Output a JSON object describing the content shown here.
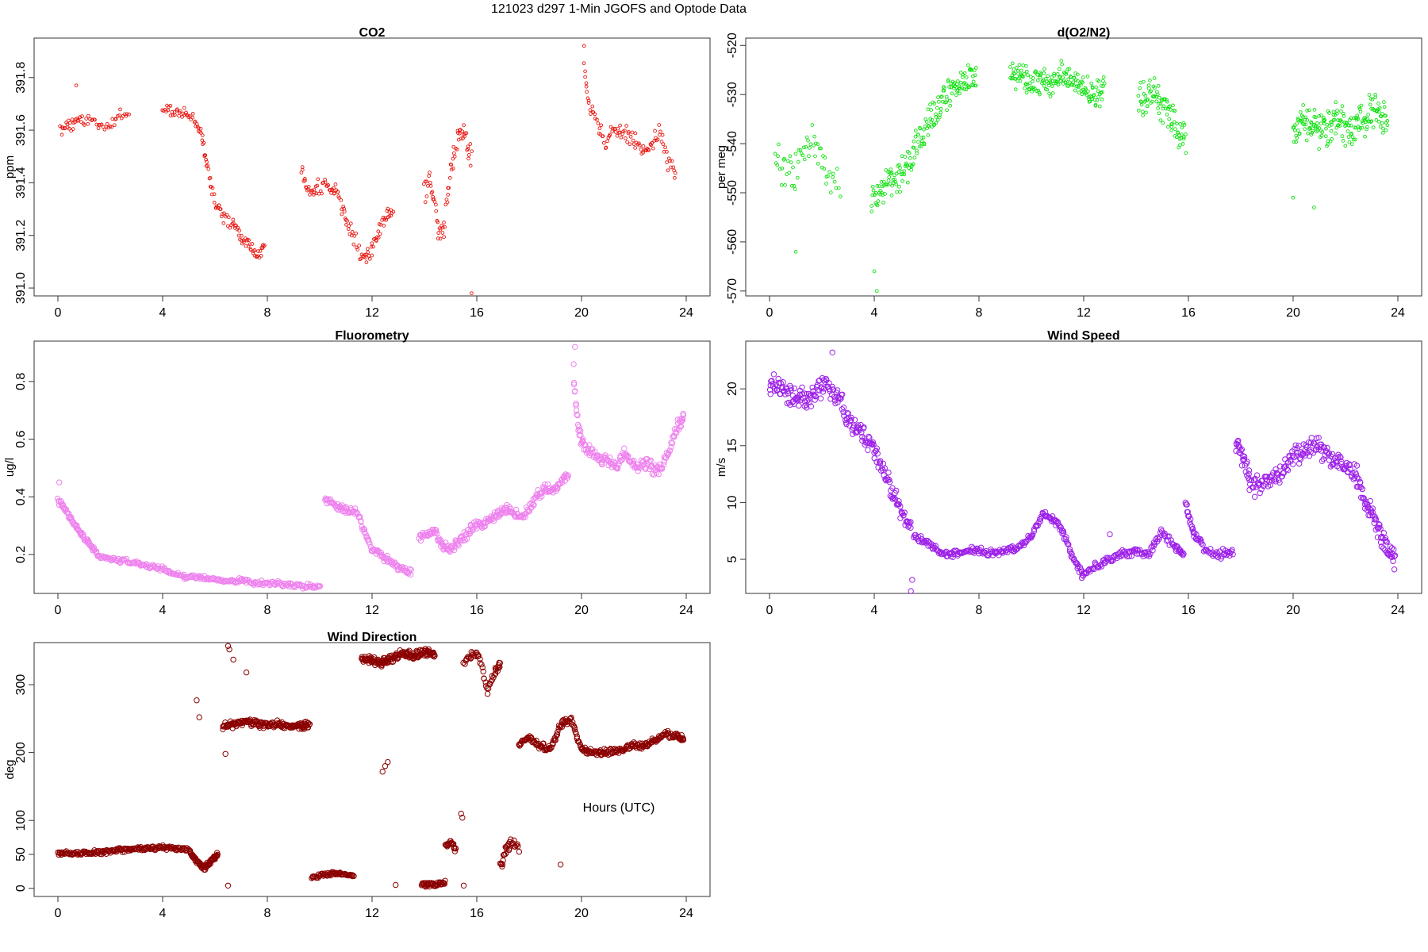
{
  "figure": {
    "title": "121023   d297   1-Min  JGOFS and Optode Data",
    "xlabel": "Hours (UTC)"
  },
  "chart_data": [
    {
      "type": "scatter",
      "id": "co2",
      "title": "CO2",
      "ylabel": "ppm",
      "color": "#e8150f",
      "xlim": [
        0,
        24
      ],
      "ylim": [
        390.97,
        391.95
      ],
      "xticks": [
        "0",
        "4",
        "8",
        "12",
        "16",
        "20",
        "24"
      ],
      "yticks": [
        "391.0",
        "391.2",
        "391.4",
        "391.6",
        "391.8"
      ],
      "segments": [
        {
          "x": [
            0.1,
            0.3,
            0.5,
            0.7,
            0.9,
            1.2,
            1.5,
            1.8,
            2.1,
            2.4,
            2.7
          ],
          "y": [
            391.6,
            391.62,
            391.61,
            391.65,
            391.63,
            391.64,
            391.62,
            391.61,
            391.63,
            391.66,
            391.65
          ],
          "jitter": 0.025,
          "n": 60
        },
        {
          "x": [
            4.0,
            4.4,
            4.8,
            5.2,
            5.5,
            5.7,
            6.0,
            6.3,
            6.7,
            7.0,
            7.3,
            7.6,
            7.9
          ],
          "y": [
            391.69,
            391.67,
            391.66,
            391.64,
            391.58,
            391.46,
            391.33,
            391.27,
            391.24,
            391.2,
            391.17,
            391.12,
            391.15
          ],
          "jitter": 0.03,
          "n": 120
        },
        {
          "x": [
            9.3,
            9.6,
            9.9,
            10.3,
            10.6,
            10.9,
            11.2,
            11.6,
            11.9,
            12.2,
            12.5,
            12.8
          ],
          "y": [
            391.46,
            391.37,
            391.38,
            391.4,
            391.37,
            391.3,
            391.22,
            391.12,
            391.13,
            391.2,
            391.26,
            391.3
          ],
          "jitter": 0.035,
          "n": 110
        },
        {
          "x": [
            14.0,
            14.2,
            14.4,
            14.6,
            14.8,
            15.0,
            15.2,
            15.4,
            15.6,
            15.8
          ],
          "y": [
            391.35,
            391.4,
            391.32,
            391.18,
            391.28,
            391.45,
            391.55,
            391.6,
            391.55,
            391.5
          ],
          "jitter": 0.06,
          "n": 70
        },
        {
          "x": [
            20.1,
            20.3,
            20.6,
            20.9,
            21.2,
            21.5,
            21.8,
            22.1,
            22.4,
            22.7,
            23.0,
            23.3,
            23.6
          ],
          "y": [
            391.85,
            391.7,
            391.62,
            391.55,
            391.6,
            391.59,
            391.58,
            391.55,
            391.5,
            391.55,
            391.6,
            391.48,
            391.45
          ],
          "jitter": 0.04,
          "n": 100
        }
      ],
      "points": [
        {
          "x": 0.7,
          "y": 391.77
        },
        {
          "x": 15.8,
          "y": 390.98
        },
        {
          "x": 20.1,
          "y": 391.92
        }
      ]
    },
    {
      "type": "scatter",
      "id": "o2n2",
      "title": "d(O2/N2)",
      "ylabel": "per meg",
      "color": "#10e010",
      "xlim": [
        0,
        24
      ],
      "ylim": [
        -571,
        -518.5
      ],
      "xticks": [
        "0",
        "4",
        "8",
        "12",
        "16",
        "20",
        "24"
      ],
      "yticks": [
        "-570",
        "-560",
        "-550",
        "-540",
        "-530",
        "-520"
      ],
      "segments": [
        {
          "x": [
            0.2,
            0.6,
            1.0,
            1.4,
            1.8,
            2.2,
            2.7
          ],
          "y": [
            -542,
            -547,
            -545,
            -541,
            -540,
            -548,
            -548
          ],
          "jitter": 5,
          "n": 60
        },
        {
          "x": [
            3.9,
            4.3,
            4.7,
            5.1,
            5.5,
            5.9,
            6.3,
            6.7,
            7.1,
            7.5,
            7.9
          ],
          "y": [
            -552,
            -549,
            -547,
            -546,
            -542,
            -538,
            -534,
            -531,
            -528,
            -527,
            -526
          ],
          "jitter": 4,
          "n": 190
        },
        {
          "x": [
            9.2,
            9.6,
            10.0,
            10.4,
            10.8,
            11.2,
            11.6,
            12.0,
            12.4,
            12.8
          ],
          "y": [
            -526,
            -526,
            -528,
            -527,
            -528,
            -526,
            -527,
            -528,
            -531,
            -528
          ],
          "jitter": 3.5,
          "n": 180
        },
        {
          "x": [
            14.1,
            14.4,
            14.7,
            15.0,
            15.3,
            15.6,
            15.9
          ],
          "y": [
            -531,
            -530,
            -529,
            -532,
            -535,
            -538,
            -539
          ],
          "jitter": 4.5,
          "n": 90
        },
        {
          "x": [
            20.0,
            20.4,
            20.8,
            21.2,
            21.6,
            22.0,
            22.4,
            22.8,
            23.2,
            23.6
          ],
          "y": [
            -537,
            -535,
            -537,
            -538,
            -535,
            -537,
            -536,
            -535,
            -533,
            -535
          ],
          "jitter": 4.5,
          "n": 190
        }
      ],
      "points": [
        {
          "x": 4.1,
          "y": -570
        },
        {
          "x": 4.0,
          "y": -566
        },
        {
          "x": 1.0,
          "y": -562
        },
        {
          "x": 20.8,
          "y": -553
        },
        {
          "x": 20.0,
          "y": -551
        }
      ]
    },
    {
      "type": "scatter",
      "id": "fluor",
      "title": "Fluorometry",
      "ylabel": "ug/l",
      "color": "#ee82ee",
      "xlim": [
        0,
        24
      ],
      "ylim": [
        0.065,
        0.94
      ],
      "xticks": [
        "0",
        "4",
        "8",
        "12",
        "16",
        "20",
        "24"
      ],
      "yticks": [
        "0.2",
        "0.4",
        "0.6",
        "0.8"
      ],
      "segments": [
        {
          "x": [
            0.0,
            0.3,
            0.6,
            0.9,
            1.2,
            1.5,
            2.0,
            2.5,
            3.0,
            3.5,
            4.0,
            4.5,
            5.0,
            5.5,
            6.0,
            6.5,
            7.0,
            7.5,
            8.0,
            8.5,
            9.0,
            9.5,
            10.0
          ],
          "y": [
            0.39,
            0.35,
            0.31,
            0.27,
            0.24,
            0.2,
            0.18,
            0.18,
            0.17,
            0.16,
            0.15,
            0.13,
            0.12,
            0.12,
            0.11,
            0.11,
            0.11,
            0.1,
            0.1,
            0.1,
            0.09,
            0.09,
            0.09
          ],
          "jitter": 0.01,
          "n": 300
        },
        {
          "x": [
            10.2,
            10.5,
            10.8,
            11.1,
            11.4,
            11.7,
            12.0,
            12.3,
            12.6,
            12.9,
            13.2,
            13.5
          ],
          "y": [
            0.39,
            0.38,
            0.36,
            0.35,
            0.35,
            0.28,
            0.22,
            0.2,
            0.18,
            0.16,
            0.15,
            0.14
          ],
          "jitter": 0.015,
          "n": 120
        },
        {
          "x": [
            13.8,
            14.1,
            14.4,
            14.7,
            15.0,
            15.3,
            15.6,
            15.9,
            16.2,
            16.5,
            16.8,
            17.1,
            17.4,
            17.7,
            18.0,
            18.3,
            18.6,
            18.9,
            19.2,
            19.5
          ],
          "y": [
            0.26,
            0.27,
            0.28,
            0.23,
            0.22,
            0.24,
            0.27,
            0.3,
            0.3,
            0.32,
            0.34,
            0.36,
            0.35,
            0.32,
            0.36,
            0.4,
            0.43,
            0.42,
            0.45,
            0.48
          ],
          "jitter": 0.02,
          "n": 230
        },
        {
          "x": [
            19.7,
            19.9,
            20.1,
            20.4,
            20.7,
            21.0,
            21.3,
            21.6,
            21.9,
            22.2,
            22.5,
            22.8,
            23.1,
            23.4,
            23.7,
            23.9
          ],
          "y": [
            0.8,
            0.62,
            0.58,
            0.55,
            0.53,
            0.52,
            0.5,
            0.55,
            0.53,
            0.5,
            0.52,
            0.49,
            0.51,
            0.57,
            0.65,
            0.68
          ],
          "jitter": 0.025,
          "n": 170
        }
      ],
      "points": [
        {
          "x": 19.75,
          "y": 0.92
        },
        {
          "x": 19.7,
          "y": 0.86
        },
        {
          "x": 0.05,
          "y": 0.45
        }
      ]
    },
    {
      "type": "scatter",
      "id": "wspd",
      "title": "Wind Speed",
      "ylabel": "m/s",
      "color": "#9d20e8",
      "xlim": [
        0,
        24
      ],
      "ylim": [
        2.0,
        24.2
      ],
      "xticks": [
        "0",
        "4",
        "8",
        "12",
        "16",
        "20",
        "24"
      ],
      "yticks": [
        "5",
        "10",
        "15",
        "20"
      ],
      "segments": [
        {
          "x": [
            0.0,
            0.3,
            0.6,
            0.9,
            1.2,
            1.5,
            1.8,
            2.1,
            2.4,
            2.7,
            3.0,
            3.3,
            3.6,
            3.9,
            4.2,
            4.5,
            4.8,
            5.1,
            5.4
          ],
          "y": [
            20.5,
            20.5,
            19.5,
            19.2,
            19.3,
            19.2,
            19.8,
            20.3,
            19.5,
            19.0,
            17.0,
            16.5,
            16.0,
            15.0,
            13.5,
            12.0,
            10.5,
            9.0,
            7.8
          ],
          "jitter": 1.1,
          "n": 220
        },
        {
          "x": [
            5.5,
            6.0,
            6.5,
            7.0,
            7.5,
            8.0,
            8.5,
            9.0,
            9.5,
            10.0,
            10.4,
            10.8,
            11.2,
            11.6,
            12.0,
            12.5,
            13.0,
            13.5,
            14.0,
            14.5,
            15.0,
            15.5,
            15.8
          ],
          "y": [
            7.0,
            6.5,
            5.6,
            5.5,
            5.8,
            5.8,
            5.5,
            5.8,
            6.0,
            7.0,
            9.0,
            8.5,
            7.5,
            5.0,
            3.5,
            4.5,
            5.0,
            5.5,
            5.7,
            5.5,
            7.5,
            6.0,
            5.5
          ],
          "jitter": 0.4,
          "n": 330
        },
        {
          "x": [
            15.9,
            16.1,
            16.3,
            16.6,
            17.0,
            17.4,
            17.7
          ],
          "y": [
            10.0,
            8.0,
            7.0,
            6.0,
            5.5,
            5.5,
            5.8
          ],
          "jitter": 0.5,
          "n": 60
        },
        {
          "x": [
            17.8,
            18.1,
            18.4,
            18.8,
            19.2,
            19.6,
            20.0,
            20.4,
            20.8,
            21.2,
            21.6,
            22.0,
            22.4,
            22.7,
            23.0,
            23.3,
            23.6,
            23.9
          ],
          "y": [
            15.5,
            14.0,
            11.5,
            11.5,
            12.0,
            12.5,
            14.0,
            14.5,
            15.0,
            14.5,
            13.5,
            13.0,
            12.5,
            10.5,
            9.0,
            7.5,
            6.0,
            5.0
          ],
          "jitter": 1.1,
          "n": 250
        }
      ],
      "points": [
        {
          "x": 5.4,
          "y": 2.2
        },
        {
          "x": 5.45,
          "y": 3.2
        },
        {
          "x": 13.0,
          "y": 7.2
        },
        {
          "x": 2.4,
          "y": 23.2
        }
      ]
    },
    {
      "type": "scatter",
      "id": "wdir",
      "title": "Wind Direction",
      "ylabel": "deg",
      "color": "#8b0000",
      "xlim": [
        0,
        24
      ],
      "ylim": [
        -12,
        362
      ],
      "xticks": [
        "0",
        "4",
        "8",
        "12",
        "16",
        "20",
        "24"
      ],
      "yticks": [
        "0",
        "50",
        "100",
        "200",
        "300"
      ],
      "segments": [
        {
          "x": [
            0.0,
            0.5,
            1.0,
            1.5,
            2.0,
            2.5,
            3.0,
            3.5,
            4.0,
            4.5,
            5.0,
            5.3,
            5.6,
            5.9,
            6.1
          ],
          "y": [
            52,
            51,
            52,
            53,
            55,
            57,
            58,
            59,
            60,
            58,
            56,
            40,
            30,
            42,
            50
          ],
          "jitter": 4,
          "n": 250
        },
        {
          "x": [
            6.3,
            6.8,
            7.3,
            7.8,
            8.3,
            8.8,
            9.3,
            9.6
          ],
          "y": [
            238,
            242,
            246,
            240,
            242,
            240,
            238,
            242
          ],
          "jitter": 6,
          "n": 160
        },
        {
          "x": [
            9.7,
            10.1,
            10.5,
            10.9,
            11.3
          ],
          "y": [
            15,
            20,
            22,
            20,
            18
          ],
          "jitter": 3,
          "n": 60
        },
        {
          "x": [
            11.6,
            12.0,
            12.4,
            12.8,
            13.2,
            13.6,
            14.0,
            14.4
          ],
          "y": [
            338,
            336,
            332,
            340,
            346,
            342,
            348,
            346
          ],
          "jitter": 7,
          "n": 170
        },
        {
          "x": [
            13.9,
            14.2,
            14.5,
            14.8
          ],
          "y": [
            5,
            6,
            6,
            10
          ],
          "jitter": 4,
          "n": 40
        },
        {
          "x": [
            14.8,
            15.0,
            15.2
          ],
          "y": [
            62,
            68,
            55
          ],
          "jitter": 5,
          "n": 20
        },
        {
          "x": [
            15.5,
            15.8,
            16.1,
            16.4,
            16.7,
            16.9
          ],
          "y": [
            330,
            345,
            342,
            290,
            320,
            330
          ],
          "jitter": 8,
          "n": 50
        },
        {
          "x": [
            16.9,
            17.1,
            17.3,
            17.6
          ],
          "y": [
            30,
            55,
            70,
            60
          ],
          "jitter": 10,
          "n": 30
        },
        {
          "x": [
            17.6,
            18.0,
            18.4,
            18.8,
            19.2,
            19.6,
            20.0,
            20.4,
            20.8,
            21.2,
            21.6,
            22.0,
            22.4,
            22.8,
            23.2,
            23.6,
            23.9
          ],
          "y": [
            212,
            222,
            210,
            205,
            240,
            250,
            205,
            200,
            200,
            202,
            205,
            210,
            210,
            218,
            228,
            225,
            220
          ],
          "jitter": 6,
          "n": 270
        }
      ],
      "points": [
        {
          "x": 5.3,
          "y": 277
        },
        {
          "x": 5.4,
          "y": 252
        },
        {
          "x": 6.5,
          "y": 357
        },
        {
          "x": 6.55,
          "y": 352
        },
        {
          "x": 6.7,
          "y": 337
        },
        {
          "x": 7.2,
          "y": 318
        },
        {
          "x": 12.4,
          "y": 172
        },
        {
          "x": 12.5,
          "y": 180
        },
        {
          "x": 12.6,
          "y": 186
        },
        {
          "x": 15.4,
          "y": 110
        },
        {
          "x": 15.45,
          "y": 104
        },
        {
          "x": 15.5,
          "y": 4
        },
        {
          "x": 12.9,
          "y": 5
        },
        {
          "x": 19.2,
          "y": 35
        },
        {
          "x": 6.4,
          "y": 198
        },
        {
          "x": 6.5,
          "y": 4
        }
      ]
    }
  ]
}
